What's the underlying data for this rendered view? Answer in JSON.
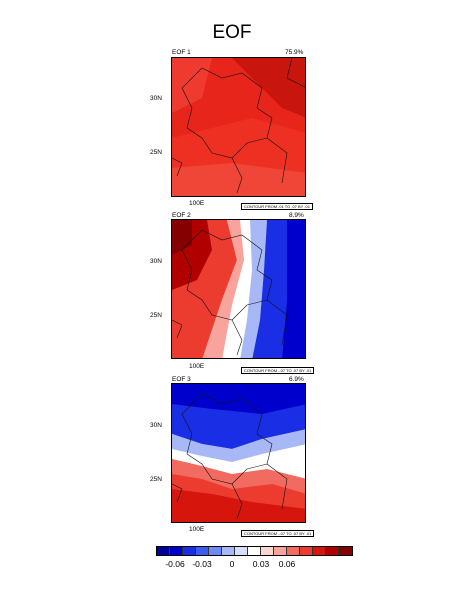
{
  "title": "EOF",
  "panels": [
    {
      "label": "EOF 1",
      "variance": "75.9%",
      "contour_info": "CONTOUR FROM .01 TO .07 BY .01"
    },
    {
      "label": "EOF 2",
      "variance": "8.9%",
      "contour_info": "CONTOUR FROM -.07 TO .07 BY .01"
    },
    {
      "label": "EOF 3",
      "variance": "6.9%",
      "contour_info": "CONTOUR FROM -.07 TO .07 BY .01"
    }
  ],
  "axes": {
    "lat_labels": [
      "30N",
      "25N"
    ],
    "lon_label": "100E"
  },
  "colorbar": {
    "labels": [
      "-0.06",
      "-0.03",
      "0",
      "0.03",
      "0.06"
    ],
    "colors": [
      "#00009a",
      "#0000cc",
      "#1a2ee6",
      "#3a5cf0",
      "#6e8bf5",
      "#a8b8f6",
      "#d8ddf8",
      "#ffffff",
      "#fcd4d0",
      "#f8a49c",
      "#f26b60",
      "#ec3c30",
      "#d6150d",
      "#b00000",
      "#850000"
    ]
  }
}
